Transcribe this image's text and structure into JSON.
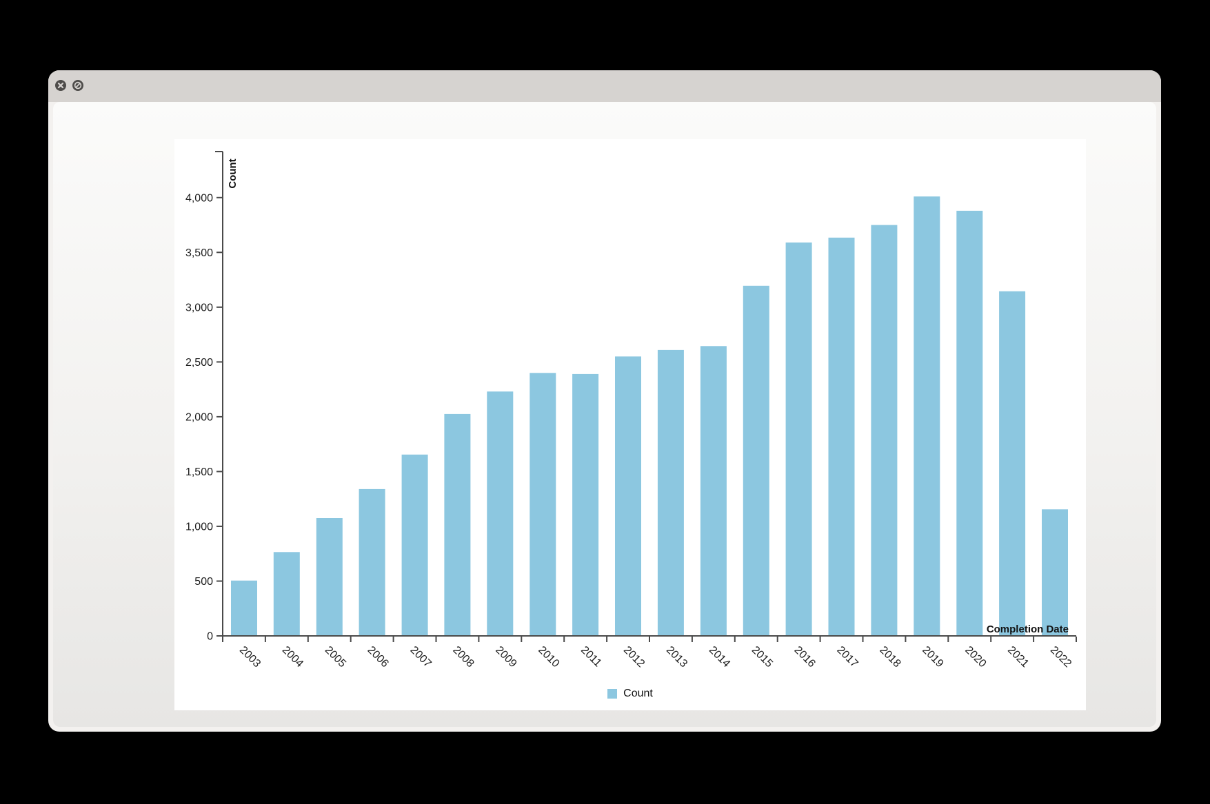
{
  "window": {
    "titlebar": {
      "buttons": [
        {
          "name": "close-button",
          "icon": "circle-x"
        },
        {
          "name": "block-button",
          "icon": "circle-slash"
        }
      ]
    }
  },
  "chart_data": {
    "type": "bar",
    "title": "",
    "xlabel": "Completion Date",
    "ylabel": "Count",
    "categories": [
      "2003",
      "2004",
      "2005",
      "2006",
      "2007",
      "2008",
      "2009",
      "2010",
      "2011",
      "2012",
      "2013",
      "2014",
      "2015",
      "2016",
      "2017",
      "2018",
      "2019",
      "2020",
      "2021",
      "2022"
    ],
    "values": [
      505,
      765,
      1075,
      1340,
      1655,
      2025,
      2230,
      2400,
      2390,
      2550,
      2610,
      2645,
      3195,
      3590,
      3635,
      3750,
      4010,
      3880,
      3145,
      1155
    ],
    "ylim": [
      0,
      4420
    ],
    "yticks": [
      0,
      500,
      1000,
      1500,
      2000,
      2500,
      3000,
      3500,
      4000
    ],
    "ytick_labels": [
      "0",
      "500",
      "1,000",
      "1,500",
      "2,000",
      "2,500",
      "3,000",
      "3,500",
      "4,000"
    ],
    "x_label_angle": 45,
    "grid": false,
    "bar_color": "#8cc7e0",
    "axis_color": "#4a4a4a",
    "legend": {
      "position": "bottom",
      "items": [
        {
          "label": "Count",
          "color": "#8cc7e0"
        }
      ]
    }
  }
}
